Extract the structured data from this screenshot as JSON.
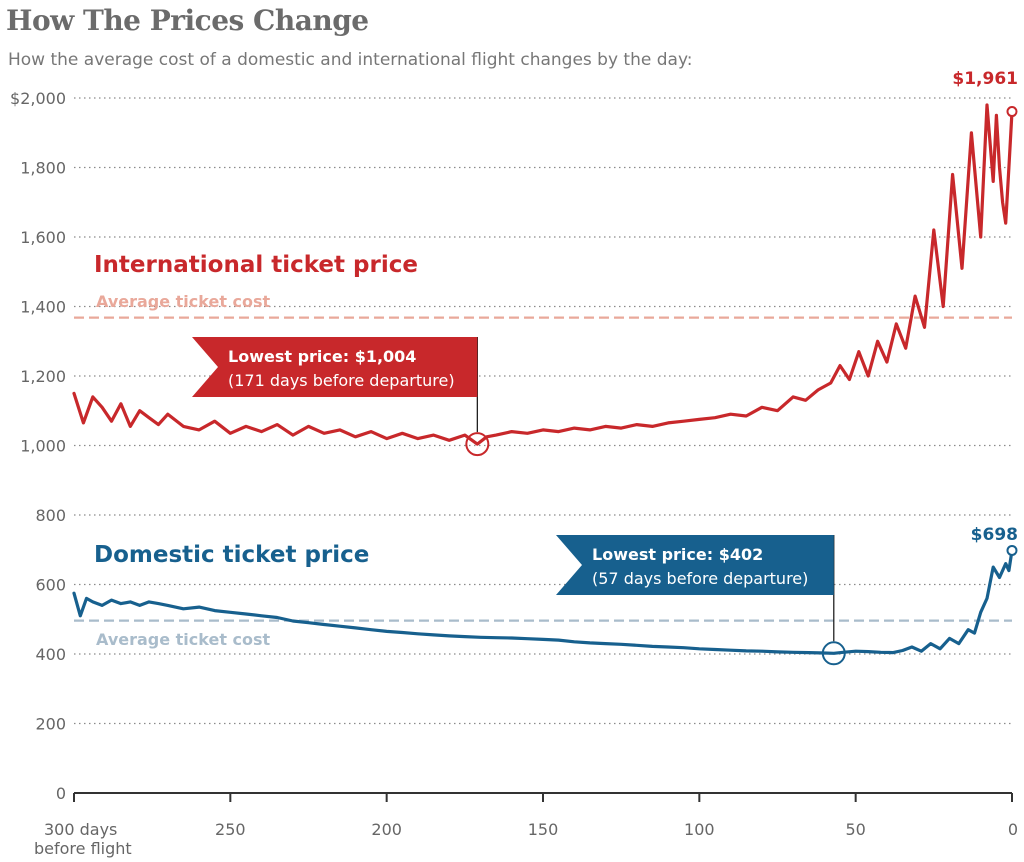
{
  "title": "How The Prices Change",
  "subtitle": "How the average cost of a domestic and international flight changes by the day:",
  "colors": {
    "international": "#c8282b",
    "international_avg": "#e9a89a",
    "domestic": "#17608e",
    "domestic_avg": "#a9bccb",
    "grid": "#8a8a8a",
    "axis": "#333333"
  },
  "chart_data": {
    "type": "line",
    "xlim": [
      300,
      0
    ],
    "ylim": [
      0,
      2000
    ],
    "x_ticks": [
      300,
      250,
      200,
      150,
      100,
      50,
      0
    ],
    "x_tick_labels": [
      "300 days",
      "250",
      "200",
      "150",
      "100",
      "50",
      "0"
    ],
    "x_tick_sublabel": "before flight",
    "y_ticks": [
      0,
      200,
      400,
      600,
      800,
      1000,
      1200,
      1400,
      1600,
      1800,
      2000
    ],
    "y_tick_labels": [
      "0",
      "200",
      "400",
      "600",
      "800",
      "1,000",
      "1,200",
      "1,400",
      "1,600",
      "1,800",
      "$2,000"
    ],
    "grid": "horizontal dotted",
    "series": [
      {
        "name": "International ticket price",
        "avg_label": "Average ticket cost",
        "average": 1368,
        "end_label": "$1,961",
        "end_value": 1961,
        "lowest": {
          "day": 171,
          "value": 1004,
          "line1": "Lowest price: $1,004",
          "line2": "(171 days before departure)"
        },
        "x": [
          300,
          297,
          294,
          291,
          288,
          285,
          282,
          279,
          276,
          273,
          270,
          265,
          260,
          255,
          250,
          245,
          240,
          235,
          230,
          225,
          220,
          215,
          210,
          205,
          200,
          195,
          190,
          185,
          180,
          175,
          171,
          168,
          165,
          160,
          155,
          150,
          145,
          140,
          135,
          130,
          125,
          120,
          115,
          110,
          105,
          100,
          95,
          90,
          85,
          80,
          75,
          70,
          66,
          62,
          58,
          55,
          52,
          49,
          46,
          43,
          40,
          37,
          34,
          31,
          28,
          25,
          22,
          19,
          16,
          13,
          10,
          8,
          6,
          5,
          4,
          3,
          2,
          1,
          0
        ],
        "y": [
          1150,
          1065,
          1140,
          1110,
          1070,
          1120,
          1055,
          1100,
          1080,
          1060,
          1090,
          1055,
          1045,
          1070,
          1035,
          1055,
          1040,
          1060,
          1030,
          1055,
          1035,
          1045,
          1025,
          1040,
          1020,
          1035,
          1020,
          1030,
          1015,
          1030,
          1004,
          1025,
          1030,
          1040,
          1035,
          1045,
          1040,
          1050,
          1045,
          1055,
          1050,
          1060,
          1055,
          1065,
          1070,
          1075,
          1080,
          1090,
          1085,
          1110,
          1100,
          1140,
          1130,
          1160,
          1180,
          1230,
          1190,
          1270,
          1200,
          1300,
          1240,
          1350,
          1280,
          1430,
          1340,
          1620,
          1400,
          1780,
          1510,
          1900,
          1600,
          1980,
          1760,
          1950,
          1800,
          1700,
          1640,
          1800,
          1961
        ]
      },
      {
        "name": "Domestic ticket price",
        "avg_label": "Average ticket cost",
        "average": 496,
        "end_label": "$698",
        "end_value": 698,
        "lowest": {
          "day": 57,
          "value": 402,
          "line1": "Lowest price: $402",
          "line2": "(57 days before departure)"
        },
        "x": [
          300,
          298,
          296,
          294,
          291,
          288,
          285,
          282,
          279,
          276,
          273,
          270,
          265,
          260,
          255,
          250,
          245,
          240,
          235,
          230,
          225,
          220,
          215,
          210,
          205,
          200,
          195,
          190,
          185,
          180,
          175,
          170,
          165,
          160,
          155,
          150,
          145,
          140,
          135,
          130,
          125,
          120,
          115,
          110,
          105,
          100,
          95,
          90,
          85,
          80,
          75,
          70,
          65,
          60,
          57,
          54,
          50,
          46,
          42,
          38,
          35,
          32,
          29,
          26,
          23,
          20,
          17,
          14,
          12,
          10,
          8,
          6,
          4,
          2,
          1,
          0
        ],
        "y": [
          575,
          510,
          560,
          550,
          540,
          555,
          545,
          550,
          540,
          550,
          545,
          540,
          530,
          535,
          525,
          520,
          515,
          510,
          505,
          495,
          490,
          485,
          480,
          475,
          470,
          465,
          462,
          458,
          455,
          452,
          450,
          448,
          447,
          446,
          444,
          442,
          440,
          435,
          432,
          430,
          428,
          425,
          422,
          420,
          418,
          415,
          413,
          411,
          409,
          408,
          406,
          405,
          404,
          403,
          402,
          405,
          408,
          407,
          405,
          404,
          410,
          420,
          408,
          430,
          415,
          445,
          430,
          470,
          460,
          520,
          560,
          650,
          620,
          660,
          640,
          698
        ]
      }
    ]
  }
}
